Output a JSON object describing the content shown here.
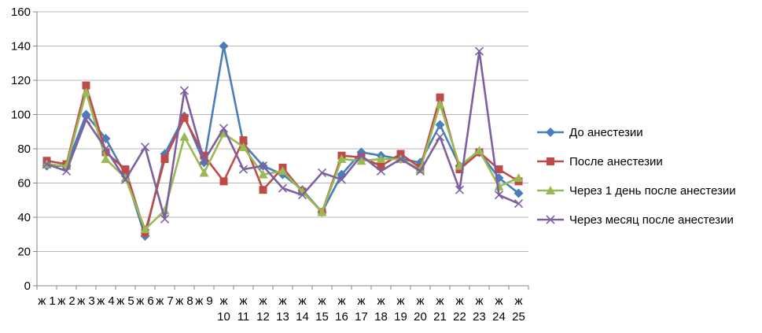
{
  "chart_data": {
    "type": "line",
    "categories": [
      "ж 1",
      "ж 2",
      "ж 3",
      "ж 4",
      "ж 5",
      "ж 6",
      "ж 7",
      "ж 8",
      "ж 9",
      "ж 10",
      "ж 11",
      "ж 12",
      "ж 13",
      "ж 14",
      "ж 15",
      "ж 16",
      "ж 17",
      "ж 18",
      "ж 19",
      "ж 20",
      "ж 21",
      "ж 22",
      "ж 23",
      "ж 24",
      "ж 25"
    ],
    "ylim": [
      0,
      160
    ],
    "yticks": [
      0,
      20,
      40,
      60,
      80,
      100,
      120,
      140,
      160
    ],
    "grid": true,
    "legend": "right",
    "series": [
      {
        "name": "До анестезии",
        "color": "#4a7ebb",
        "marker": "diamond",
        "values": [
          70,
          70,
          100,
          86,
          65,
          29,
          77,
          99,
          72,
          140,
          83,
          70,
          65,
          56,
          43,
          65,
          78,
          76,
          74,
          72,
          94,
          70,
          78,
          63,
          54
        ]
      },
      {
        "name": "После анестезии",
        "color": "#be4b48",
        "marker": "square",
        "values": [
          73,
          71,
          117,
          78,
          68,
          31,
          74,
          98,
          76,
          61,
          85,
          56,
          69,
          55,
          43,
          76,
          75,
          70,
          77,
          69,
          110,
          68,
          78,
          68,
          61
        ]
      },
      {
        "name": "Через 1 день после анестезии",
        "color": "#98b954",
        "marker": "triangle",
        "values": [
          71,
          70,
          113,
          74,
          63,
          33,
          44,
          87,
          66,
          89,
          81,
          65,
          67,
          55,
          43,
          74,
          73,
          74,
          74,
          68,
          106,
          70,
          79,
          58,
          63
        ]
      },
      {
        "name": "Через месяц после анестезии",
        "color": "#7d60a0",
        "marker": "x",
        "values": [
          71,
          67,
          97,
          80,
          62,
          81,
          39,
          114,
          73,
          92,
          68,
          70,
          57,
          53,
          66,
          62,
          76,
          67,
          74,
          67,
          87,
          56,
          137,
          53,
          48
        ]
      }
    ]
  }
}
